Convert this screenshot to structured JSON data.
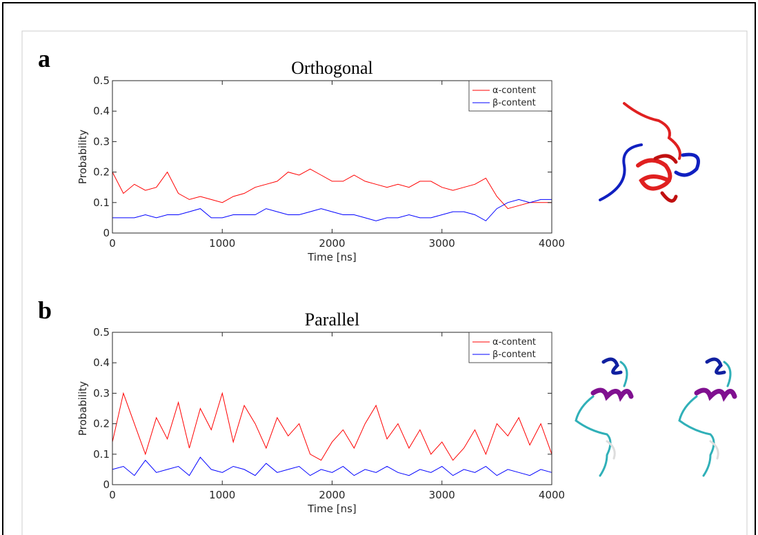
{
  "chart_data": [
    {
      "type": "line",
      "panel_label": "a",
      "title": "Orthogonal",
      "x_label": "Time [ns]",
      "y_label": "Probability",
      "x": [
        0,
        100,
        200,
        300,
        400,
        500,
        600,
        700,
        800,
        900,
        1000,
        1100,
        1200,
        1300,
        1400,
        1500,
        1600,
        1700,
        1800,
        1900,
        2000,
        2100,
        2200,
        2300,
        2400,
        2500,
        2600,
        2700,
        2800,
        2900,
        3000,
        3100,
        3200,
        3300,
        3400,
        3500,
        3600,
        3700,
        3800,
        3900,
        4000
      ],
      "series": [
        {
          "name": "α-content",
          "color": "#ff0000",
          "values": [
            0.2,
            0.13,
            0.16,
            0.14,
            0.15,
            0.2,
            0.13,
            0.11,
            0.12,
            0.11,
            0.1,
            0.12,
            0.13,
            0.15,
            0.16,
            0.17,
            0.2,
            0.19,
            0.21,
            0.19,
            0.17,
            0.17,
            0.19,
            0.17,
            0.16,
            0.15,
            0.16,
            0.15,
            0.17,
            0.17,
            0.15,
            0.14,
            0.15,
            0.16,
            0.18,
            0.12,
            0.08,
            0.09,
            0.1,
            0.1,
            0.1
          ]
        },
        {
          "name": "β-content",
          "color": "#0000ff",
          "values": [
            0.05,
            0.05,
            0.05,
            0.06,
            0.05,
            0.06,
            0.06,
            0.07,
            0.08,
            0.05,
            0.05,
            0.06,
            0.06,
            0.06,
            0.08,
            0.07,
            0.06,
            0.06,
            0.07,
            0.08,
            0.07,
            0.06,
            0.06,
            0.05,
            0.04,
            0.05,
            0.05,
            0.06,
            0.05,
            0.05,
            0.06,
            0.07,
            0.07,
            0.06,
            0.04,
            0.08,
            0.1,
            0.11,
            0.1,
            0.11,
            0.11
          ]
        }
      ],
      "xlim": [
        0,
        4000
      ],
      "xticks": [
        0,
        1000,
        2000,
        3000,
        4000
      ],
      "ylim": [
        0,
        0.5
      ],
      "yticks": [
        0,
        0.1,
        0.2,
        0.3,
        0.4,
        0.5
      ],
      "legend": "northeast"
    },
    {
      "type": "line",
      "panel_label": "b",
      "title": "Parallel",
      "x_label": "Time [ns]",
      "y_label": "Probability",
      "x": [
        0,
        100,
        200,
        300,
        400,
        500,
        600,
        700,
        800,
        900,
        1000,
        1100,
        1200,
        1300,
        1400,
        1500,
        1600,
        1700,
        1800,
        1900,
        2000,
        2100,
        2200,
        2300,
        2400,
        2500,
        2600,
        2700,
        2800,
        2900,
        3000,
        3100,
        3200,
        3300,
        3400,
        3500,
        3600,
        3700,
        3800,
        3900,
        4000
      ],
      "series": [
        {
          "name": "α-content",
          "color": "#ff0000",
          "values": [
            0.14,
            0.3,
            0.2,
            0.1,
            0.22,
            0.15,
            0.27,
            0.12,
            0.25,
            0.18,
            0.3,
            0.14,
            0.26,
            0.2,
            0.12,
            0.22,
            0.16,
            0.2,
            0.1,
            0.08,
            0.14,
            0.18,
            0.12,
            0.2,
            0.26,
            0.15,
            0.2,
            0.12,
            0.18,
            0.1,
            0.14,
            0.08,
            0.12,
            0.18,
            0.1,
            0.2,
            0.16,
            0.22,
            0.13,
            0.2,
            0.1
          ]
        },
        {
          "name": "β-content",
          "color": "#0000ff",
          "values": [
            0.05,
            0.06,
            0.03,
            0.08,
            0.04,
            0.05,
            0.06,
            0.03,
            0.09,
            0.05,
            0.04,
            0.06,
            0.05,
            0.03,
            0.07,
            0.04,
            0.05,
            0.06,
            0.03,
            0.05,
            0.04,
            0.06,
            0.03,
            0.05,
            0.04,
            0.06,
            0.04,
            0.03,
            0.05,
            0.04,
            0.06,
            0.03,
            0.05,
            0.04,
            0.06,
            0.03,
            0.05,
            0.04,
            0.03,
            0.05,
            0.04
          ]
        }
      ],
      "xlim": [
        0,
        4000
      ],
      "xticks": [
        0,
        1000,
        2000,
        3000,
        4000
      ],
      "ylim": [
        0,
        0.5
      ],
      "yticks": [
        0,
        0.1,
        0.2,
        0.3,
        0.4,
        0.5
      ],
      "legend": "northeast"
    }
  ]
}
